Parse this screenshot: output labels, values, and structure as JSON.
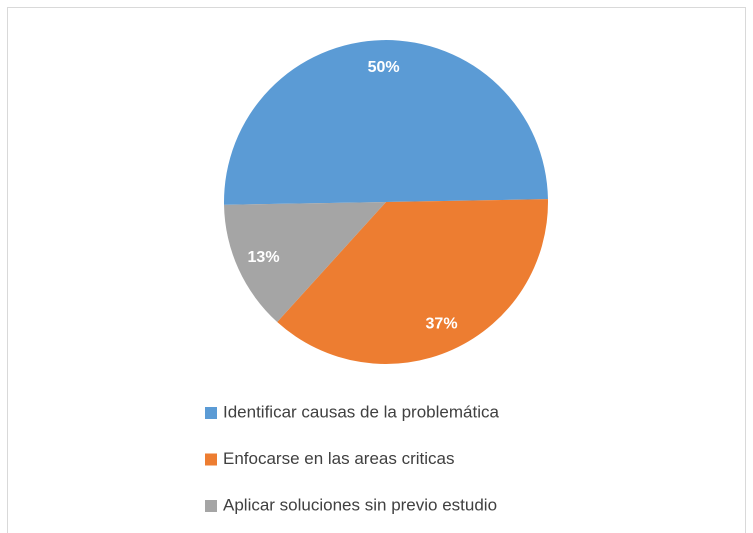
{
  "chart_data": {
    "type": "pie",
    "categories": [
      "Identificar causas de la problemática",
      "Enfocarse en las areas criticas",
      "Aplicar soluciones sin previo estudio"
    ],
    "values": [
      50,
      37,
      13
    ],
    "value_labels": [
      "50%",
      "37%",
      "13%"
    ],
    "colors": [
      "#5b9bd5",
      "#ed7d31",
      "#a5a5a5"
    ],
    "legend": "bottom"
  }
}
